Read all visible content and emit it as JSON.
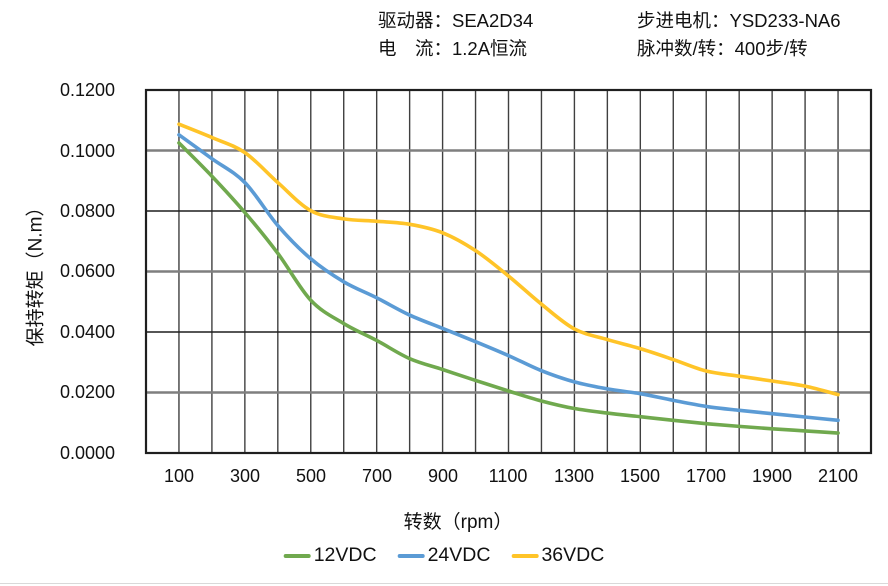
{
  "header": {
    "driver": "驱动器：SEA2D34",
    "current": "电　流：1.2A恒流",
    "motor": "步进电机：YSD233-NA6",
    "pulses_per_rev": "脉冲数/转：400步/转"
  },
  "colors": {
    "border": "#1f1f1f",
    "grid_dark": "#404040",
    "grid_gray": "#7f7f7f",
    "text": "#111111",
    "series_12vdc": "#70A94E",
    "series_24vdc": "#5B9BD5",
    "series_36vdc": "#FFC428"
  },
  "chart_data": {
    "type": "line",
    "title": "",
    "xlabel": "转数（rpm）",
    "ylabel": "保持转矩（N.m）",
    "xlim": [
      0,
      2200
    ],
    "ylim": [
      0,
      0.12
    ],
    "grid": {
      "x_step_rpm": 100,
      "y_step_nm": 0.02,
      "on": true
    },
    "legend_position": "bottom",
    "x_tick_labels": [
      "100",
      "300",
      "500",
      "700",
      "900",
      "1100",
      "1300",
      "1500",
      "1700",
      "1900",
      "2100"
    ],
    "y_tick_labels": [
      "0.1200",
      "0.1000",
      "0.0800",
      "0.0600",
      "0.0400",
      "0.0200",
      "0.0000"
    ],
    "x": [
      100,
      200,
      300,
      400,
      500,
      600,
      700,
      800,
      900,
      1000,
      1100,
      1200,
      1300,
      1400,
      1500,
      1600,
      1700,
      1800,
      1900,
      2000,
      2100
    ],
    "series": [
      {
        "name": "12VDC",
        "color": "#70A94E",
        "values": [
          0.1025,
          0.0915,
          0.0795,
          0.066,
          0.0505,
          0.0428,
          0.0372,
          0.0312,
          0.0276,
          0.024,
          0.0205,
          0.0172,
          0.0147,
          0.0132,
          0.012,
          0.0108,
          0.0097,
          0.0088,
          0.008,
          0.0073,
          0.0066
        ]
      },
      {
        "name": "24VDC",
        "color": "#5B9BD5",
        "values": [
          0.1052,
          0.0973,
          0.0894,
          0.0752,
          0.0642,
          0.0566,
          0.0513,
          0.0456,
          0.0412,
          0.0368,
          0.0322,
          0.0272,
          0.0235,
          0.0212,
          0.0196,
          0.0174,
          0.0154,
          0.0141,
          0.013,
          0.0119,
          0.0108
        ]
      },
      {
        "name": "36VDC",
        "color": "#FFC428",
        "values": [
          0.1087,
          0.1043,
          0.0993,
          0.0894,
          0.0801,
          0.0774,
          0.0766,
          0.0756,
          0.0728,
          0.0669,
          0.0585,
          0.0492,
          0.041,
          0.0375,
          0.0345,
          0.0309,
          0.0271,
          0.0254,
          0.0238,
          0.0221,
          0.0193
        ]
      }
    ]
  }
}
